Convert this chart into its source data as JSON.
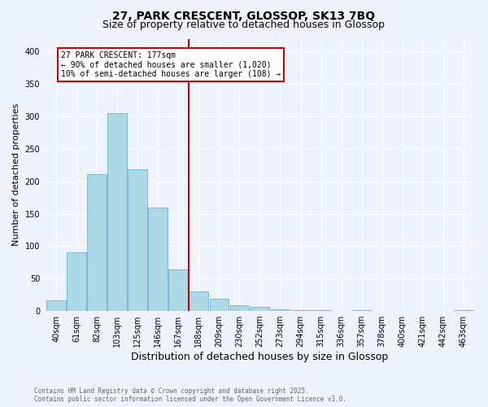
{
  "title": "27, PARK CRESCENT, GLOSSOP, SK13 7BQ",
  "subtitle": "Size of property relative to detached houses in Glossop",
  "xlabel": "Distribution of detached houses by size in Glossop",
  "ylabel": "Number of detached properties",
  "bin_labels": [
    "40sqm",
    "61sqm",
    "82sqm",
    "103sqm",
    "125sqm",
    "146sqm",
    "167sqm",
    "188sqm",
    "209sqm",
    "230sqm",
    "252sqm",
    "273sqm",
    "294sqm",
    "315sqm",
    "336sqm",
    "357sqm",
    "378sqm",
    "400sqm",
    "421sqm",
    "442sqm",
    "463sqm"
  ],
  "bar_values": [
    16,
    91,
    211,
    305,
    218,
    160,
    64,
    30,
    19,
    9,
    6,
    3,
    1,
    1,
    0,
    1,
    0,
    0,
    0,
    0,
    1
  ],
  "bar_color": "#add8e6",
  "bar_edge_color": "#6ab0cf",
  "property_line_x": 6,
  "property_line_color": "#cc0000",
  "annotation_title": "27 PARK CRESCENT: 177sqm",
  "annotation_line1": "← 90% of detached houses are smaller (1,020)",
  "annotation_line2": "10% of semi-detached houses are larger (108) →",
  "annotation_box_color": "#ffffff",
  "annotation_box_edge_color": "#cc0000",
  "ylim": [
    0,
    420
  ],
  "yticks": [
    0,
    50,
    100,
    150,
    200,
    250,
    300,
    350,
    400
  ],
  "footer_line1": "Contains HM Land Registry data © Crown copyright and database right 2025.",
  "footer_line2": "Contains public sector information licensed under the Open Government Licence v3.0.",
  "background_color": "#eef2fb",
  "grid_color": "#ffffff",
  "title_fontsize": 10,
  "subtitle_fontsize": 9,
  "tick_fontsize": 7,
  "ylabel_fontsize": 8,
  "xlabel_fontsize": 9
}
